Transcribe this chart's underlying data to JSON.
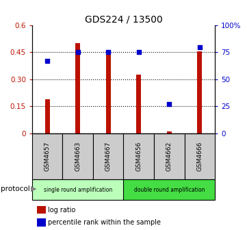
{
  "title": "GDS224 / 13500",
  "samples": [
    "GSM4657",
    "GSM4663",
    "GSM4667",
    "GSM4656",
    "GSM4662",
    "GSM4666"
  ],
  "log_ratio": [
    0.19,
    0.5,
    0.45,
    0.325,
    0.012,
    0.455
  ],
  "percentile_rank": [
    67,
    75,
    75,
    75,
    27,
    80
  ],
  "bar_color": "#bb1100",
  "dot_color": "#0000cc",
  "ylim_left": [
    0,
    0.6
  ],
  "ylim_right": [
    0,
    100
  ],
  "yticks_left": [
    0,
    0.15,
    0.3,
    0.45,
    0.6
  ],
  "ytick_labels_left": [
    "0",
    "0.15",
    "0.30",
    "0.45",
    "0.6"
  ],
  "yticks_right": [
    0,
    25,
    50,
    75,
    100
  ],
  "ytick_labels_right": [
    "0",
    "25",
    "50",
    "75",
    "100%"
  ],
  "protocol_groups": [
    {
      "label": "single round amplification",
      "start": 0,
      "end": 3,
      "color": "#bbffbb"
    },
    {
      "label": "double round amplification",
      "start": 3,
      "end": 6,
      "color": "#44dd44"
    }
  ],
  "protocol_label": "protocol",
  "legend_items": [
    {
      "label": "log ratio",
      "color": "#bb1100"
    },
    {
      "label": "percentile rank within the sample",
      "color": "#0000cc"
    }
  ],
  "grid_yticks": [
    0.15,
    0.3,
    0.45
  ],
  "sample_box_color": "#cccccc",
  "bar_width": 0.15
}
